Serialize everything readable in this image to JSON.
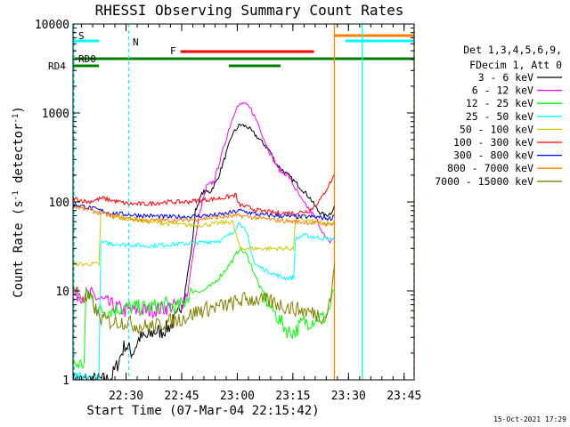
{
  "chart_data": {
    "type": "line",
    "title": "RHESSI Observing Summary Count Rates",
    "xlabel": "Start Time (07-Mar-04 22:15:42)",
    "ylabel": "Count Rate (s",
    "ylabel_sup1": "-1",
    "ylabel_mid": " detector",
    "ylabel_sup2": "-1",
    "ylabel_end": ")",
    "y_scale": "log",
    "ylim": [
      1,
      10000
    ],
    "xlim_minutes": [
      0,
      92
    ],
    "x_tick_labels": [
      "22:30",
      "22:45",
      "23:00",
      "23:15",
      "23:30",
      "23:45"
    ],
    "x_tick_minutes": [
      14.3,
      29.3,
      44.3,
      59.3,
      74.3,
      89.3
    ],
    "y_tick_labels": [
      "1",
      "10",
      "100",
      "1000",
      "10000"
    ],
    "y_tick_values": [
      1,
      10,
      100,
      1000,
      10000
    ],
    "legend_header": [
      "Det 1,3,4,5,6,9,",
      "FDecim 1, Att 0"
    ],
    "legend_placement": "right",
    "timestamp": "15-Oct-2021 17:29",
    "flags": {
      "saa_label": "S",
      "night_label": "N",
      "flare_label": "F",
      "decim_label": "RD0",
      "rd4_label": "RD4"
    },
    "series": [
      {
        "name": "3 - 6 keV",
        "color": "#000000",
        "x": [
          0,
          10,
          12,
          14,
          16,
          18,
          20,
          22,
          24,
          26,
          28,
          30,
          32,
          33,
          35,
          37,
          39,
          41,
          43,
          45,
          47,
          50,
          53,
          55,
          58,
          61,
          64,
          66,
          68,
          69.5,
          70.5
        ],
        "y": [
          1,
          1,
          1.5,
          2.5,
          2,
          3,
          3,
          3.5,
          3.5,
          4,
          5,
          9,
          30,
          80,
          130,
          130,
          180,
          320,
          580,
          740,
          700,
          520,
          380,
          260,
          200,
          150,
          110,
          80,
          70,
          75,
          90
        ]
      },
      {
        "name": "6 - 12 keV",
        "color": "#ff00ff",
        "x": [
          0,
          5,
          10,
          14,
          17,
          20,
          25,
          29,
          31,
          32,
          34,
          36,
          38,
          40,
          42,
          44,
          46,
          48,
          50,
          52,
          54,
          56,
          58,
          60,
          62,
          64,
          66,
          68,
          69,
          70.5
        ],
        "y": [
          9,
          9,
          7,
          6,
          6,
          6,
          6.5,
          7,
          10,
          20,
          70,
          150,
          170,
          330,
          650,
          1150,
          1300,
          1100,
          750,
          450,
          300,
          220,
          200,
          140,
          100,
          80,
          60,
          40,
          35,
          40
        ]
      },
      {
        "name": "12 - 25 keV",
        "color": "#00ff00",
        "x": [
          0,
          3,
          3.5,
          5,
          6,
          7,
          10,
          14,
          20,
          25,
          28,
          30,
          32,
          35,
          38,
          41,
          43,
          45,
          47,
          50,
          52,
          54,
          56,
          58,
          60,
          62,
          64,
          66,
          68,
          69.5,
          70.5
        ],
        "y": [
          1.5,
          1.5,
          10,
          8,
          7,
          6,
          6,
          6.5,
          6.5,
          7,
          6.5,
          7.5,
          10,
          10,
          12,
          17,
          22,
          30,
          25,
          12,
          8,
          6,
          4.5,
          3.5,
          3.5,
          4.5,
          4.5,
          5,
          5,
          7,
          10
        ]
      },
      {
        "name": "25 - 50 keV",
        "color": "#00ffff",
        "x": [
          0,
          7,
          7.5,
          10,
          15,
          20,
          25,
          30,
          35,
          40,
          43,
          45,
          47,
          49,
          52,
          55,
          57,
          59.5,
          60,
          62,
          66,
          69.5,
          70.5
        ],
        "y": [
          1,
          1,
          35,
          34,
          33,
          32,
          33,
          34,
          35,
          37,
          45,
          60,
          42,
          20,
          17,
          15,
          14,
          14,
          38,
          42,
          40,
          38,
          40
        ]
      },
      {
        "name": "50 - 100 keV",
        "color": "#cccc00",
        "x": [
          0,
          7,
          7.5,
          10,
          20,
          30,
          35,
          40,
          43,
          45,
          48,
          52,
          55,
          59.5,
          60,
          65,
          69.5,
          70.5
        ],
        "y": [
          20,
          20,
          80,
          70,
          60,
          55,
          55,
          58,
          60,
          30,
          30,
          30,
          30,
          30,
          65,
          60,
          55,
          60
        ]
      },
      {
        "name": "100 - 300 keV",
        "color": "#ff0000",
        "x": [
          0,
          4,
          8,
          10,
          15,
          20,
          25,
          30,
          35,
          40,
          44,
          44.5,
          46,
          50,
          55,
          60,
          64,
          67,
          69.5,
          70.5
        ],
        "y": [
          110,
          100,
          110,
          105,
          95,
          95,
          100,
          100,
          105,
          110,
          120,
          95,
          90,
          80,
          75,
          75,
          80,
          110,
          170,
          200
        ]
      },
      {
        "name": "300 - 800 keV",
        "color": "#0000ff",
        "x": [
          0,
          5,
          10,
          15,
          20,
          25,
          30,
          35,
          40,
          45,
          50,
          55,
          60,
          65,
          69.5,
          70.5
        ],
        "y": [
          95,
          85,
          75,
          72,
          70,
          68,
          68,
          70,
          72,
          80,
          72,
          70,
          68,
          68,
          65,
          70
        ]
      },
      {
        "name": "800 - 7000 keV",
        "color": "#ff8000",
        "x": [
          0,
          5,
          10,
          15,
          20,
          25,
          30,
          35,
          40,
          45,
          50,
          55,
          60,
          65,
          69.5,
          70.5
        ],
        "y": [
          90,
          80,
          70,
          65,
          62,
          62,
          62,
          65,
          68,
          70,
          66,
          62,
          60,
          58,
          56,
          60
        ]
      },
      {
        "name": "7000 - 15000 keV",
        "color": "#808000",
        "x": [
          0,
          3,
          5,
          7,
          10,
          14,
          18,
          22,
          26,
          30,
          34,
          38,
          42,
          46,
          50,
          54,
          58,
          62,
          66,
          68,
          69.5,
          70.5
        ],
        "y": [
          11,
          8,
          8,
          5,
          4.5,
          4.5,
          4,
          4,
          4.5,
          5,
          6,
          6.5,
          7,
          8,
          8,
          7.5,
          6.5,
          6,
          5.5,
          5,
          8,
          20
        ]
      }
    ]
  }
}
